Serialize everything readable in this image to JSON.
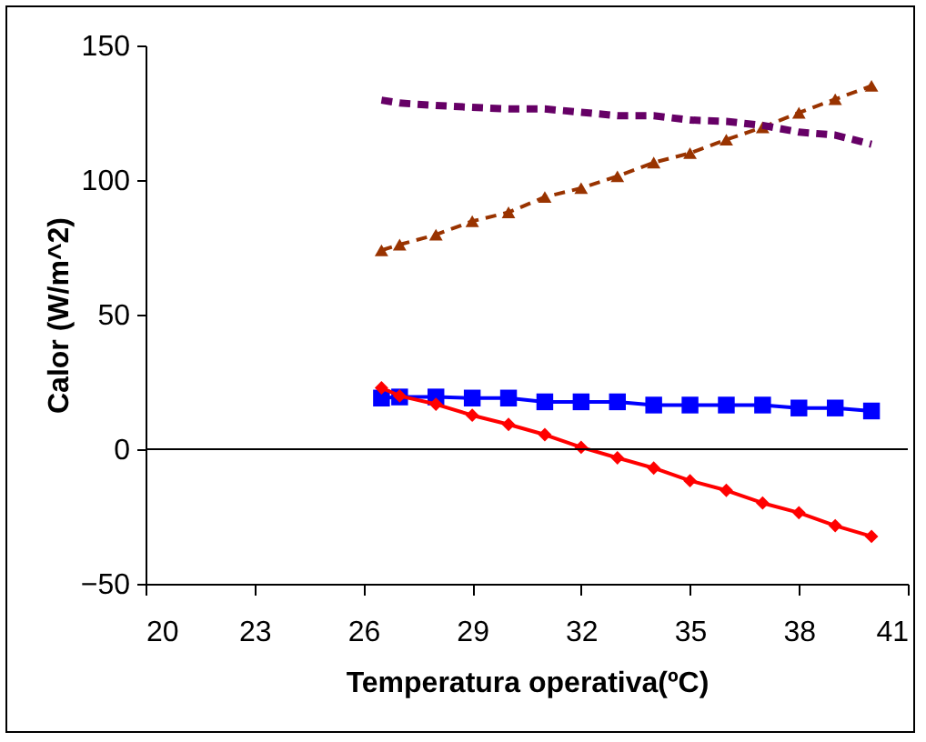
{
  "chart_data": {
    "type": "line",
    "xlabel": "Temperatura operativa(ºC)",
    "ylabel": "Calor (W/m^2)",
    "x": [
      26.5,
      27,
      28,
      29,
      30,
      31,
      32,
      33,
      34,
      35,
      36,
      37,
      38,
      39,
      40
    ],
    "series": [
      {
        "color": "#0000ff",
        "marker": "square",
        "line_style": "solid",
        "values": [
          19,
          19.4,
          19.4,
          19,
          19,
          17.6,
          17.6,
          17.6,
          16.4,
          16.4,
          16.4,
          16.4,
          15.3,
          15.3,
          14.2
        ]
      },
      {
        "color": "#ff0000",
        "marker": "diamond",
        "line_style": "solid",
        "values": [
          22.8,
          19.8,
          16.7,
          12.6,
          9.2,
          5.4,
          0.7,
          -3.2,
          -7,
          -11.7,
          -15.3,
          -20,
          -23.6,
          -28.4,
          -32.4
        ]
      },
      {
        "color": "#993300",
        "marker": "triangle",
        "line_style": "dashed",
        "values": [
          73.9,
          76,
          79.7,
          84.7,
          88,
          93.7,
          97,
          101.4,
          106.5,
          110,
          115,
          119.6,
          125,
          130,
          135
        ]
      },
      {
        "color": "#660066",
        "marker": "none",
        "line_style": "dashed",
        "values": [
          129.7,
          128.6,
          127.7,
          127,
          126.4,
          126.4,
          125.2,
          123.9,
          123.9,
          122.3,
          121.8,
          120.3,
          117.8,
          116.7,
          113.3
        ]
      }
    ],
    "xlim": [
      20,
      41
    ],
    "xticks": [
      20,
      23,
      26,
      29,
      32,
      35,
      38,
      41
    ],
    "ylim": [
      -50,
      150
    ],
    "yticks": [
      -50,
      0,
      50,
      100,
      150
    ],
    "ref_lines": [
      {
        "axis": "y",
        "value": 0
      }
    ],
    "grid": false
  }
}
